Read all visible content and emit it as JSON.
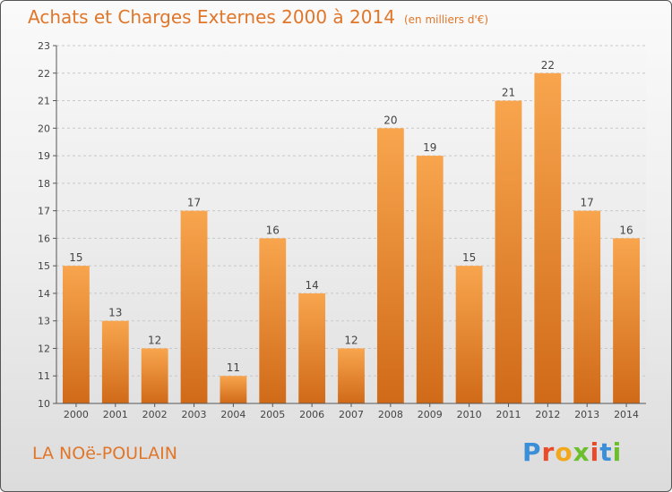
{
  "title": "Achats et Charges Externes 2000 à 2014",
  "unit": "(en milliers d'€)",
  "commune": "LA NOë-POULAIN",
  "logo": "Proxiti",
  "colors": {
    "accent": "#e0762a",
    "bar_top": "#f8a54e",
    "bar_bottom": "#d06a18"
  },
  "chart_data": {
    "type": "bar",
    "categories": [
      "2000",
      "2001",
      "2002",
      "2003",
      "2004",
      "2005",
      "2006",
      "2007",
      "2008",
      "2009",
      "2010",
      "2011",
      "2012",
      "2013",
      "2014"
    ],
    "values": [
      15,
      13,
      12,
      17,
      11,
      16,
      14,
      12,
      20,
      19,
      15,
      21,
      22,
      17,
      16
    ],
    "title": "Achats et Charges Externes 2000 à 2014",
    "xlabel": "",
    "ylabel": "",
    "ylim": [
      10,
      23
    ],
    "yticks": [
      10,
      11,
      12,
      13,
      14,
      15,
      16,
      17,
      18,
      19,
      20,
      21,
      22,
      23
    ],
    "grid": true,
    "data_labels": true
  }
}
